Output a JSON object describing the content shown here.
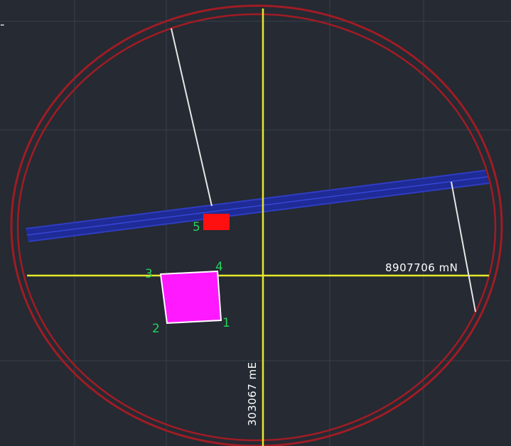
{
  "corner_mark": "-",
  "northing_label": "8907706 mN",
  "easting_label": "303067 mE",
  "vertex_labels": {
    "v1": "1",
    "v2": "2",
    "v3": "3",
    "v4": "4",
    "v5": "5"
  },
  "colors": {
    "background": "#252a33",
    "grid": "#3a404a",
    "boundary_ring": "#a01c24",
    "crosshair": "#e8e82a",
    "road": "#1f2b9c",
    "leader_line": "#e6e6e6",
    "parcel_fill": "#ff19ff",
    "parcel_outline": "#ffffff",
    "structure": "#ff1010",
    "vertex_label": "#25d35a"
  }
}
